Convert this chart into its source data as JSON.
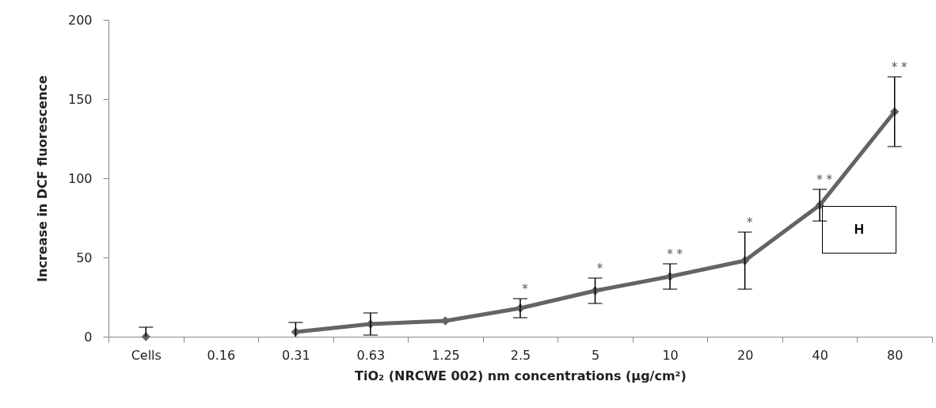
{
  "chart_data": {
    "type": "line",
    "xlabel": "TiO₂ (NRCWE 002) nm concentrations (µg/cm²)",
    "ylabel": "Increase in DCF fluorescence",
    "categories": [
      "Cells",
      "0.16",
      "0.31",
      "0.63",
      "1.25",
      "2.5",
      "5",
      "10",
      "20",
      "40",
      "80"
    ],
    "series": [
      {
        "color": "#646464",
        "values": [
          0,
          null,
          3,
          8,
          10,
          18,
          29,
          38,
          48,
          83,
          142
        ],
        "errors": [
          6,
          null,
          6,
          7,
          null,
          6,
          8,
          8,
          18,
          10,
          22
        ]
      }
    ],
    "ylim": [
      0,
      200
    ],
    "yticks": [
      0,
      50,
      100,
      150,
      200
    ],
    "grid": false,
    "marker": "diamond",
    "line_style": "solid",
    "annotations": [
      {
        "text": "*",
        "x": "2.5",
        "y": 18
      },
      {
        "text": "*",
        "x": "5",
        "y": 29
      },
      {
        "text": "* *",
        "x": "10",
        "y": 38
      },
      {
        "text": "*",
        "x": "20",
        "y": 48
      },
      {
        "text": "* *",
        "x": "40",
        "y": 83
      },
      {
        "text": "* *",
        "x": "80",
        "y": 164
      },
      "H"
    ]
  }
}
